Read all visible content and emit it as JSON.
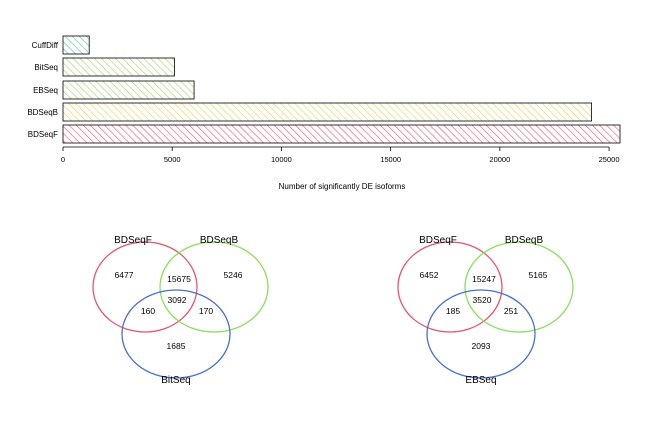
{
  "chart_data": [
    {
      "type": "bar",
      "orientation": "horizontal",
      "categories": [
        "CuffDiff",
        "BitSeq",
        "EBSeq",
        "BDSeqB",
        "BDSeqF"
      ],
      "values": [
        1200,
        5100,
        6000,
        24200,
        25500
      ],
      "xlabel": "Number of significantly DE isoforms",
      "ylabel": "",
      "xlim": [
        0,
        25500
      ],
      "xticks": [
        0,
        5000,
        10000,
        15000,
        20000,
        25000
      ],
      "xtick_labels": [
        "0",
        "5000",
        "10000",
        "15000",
        "20000",
        "25000"
      ],
      "colors": [
        "#66c2a5",
        "#a6d96a",
        "#a6d96a",
        "#e6d85a",
        "#e8607a"
      ],
      "grid": false
    },
    {
      "type": "venn",
      "sets": [
        {
          "name": "BDSeqF",
          "color": "#e8546e",
          "only": "6477"
        },
        {
          "name": "BDSeqB",
          "color": "#8ae05a",
          "only": "5246"
        },
        {
          "name": "BitSeq",
          "color": "#4a6fd0",
          "only": "1685"
        }
      ],
      "intersections": {
        "ab": "15675",
        "ac": "160",
        "bc": "170",
        "abc": "3092"
      }
    },
    {
      "type": "venn",
      "sets": [
        {
          "name": "BDSeqF",
          "color": "#e8546e",
          "only": "6452"
        },
        {
          "name": "BDSeqB",
          "color": "#8ae05a",
          "only": "5165"
        },
        {
          "name": "EBSeq",
          "color": "#4a6fd0",
          "only": "2093"
        }
      ],
      "intersections": {
        "ab": "15247",
        "ac": "185",
        "bc": "251",
        "abc": "3520"
      }
    }
  ]
}
